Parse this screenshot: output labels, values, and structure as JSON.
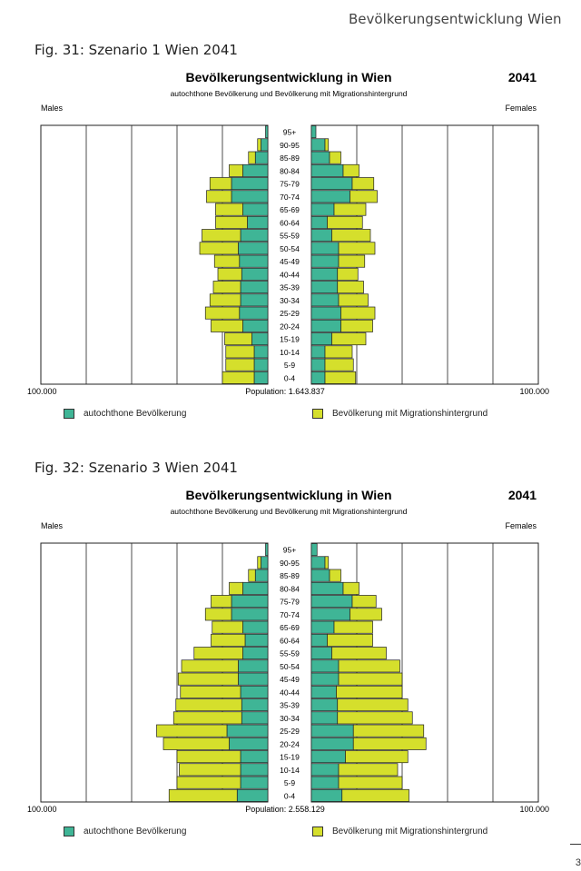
{
  "page": {
    "header": "Bevölkerungsentwicklung Wien",
    "page_number": "3"
  },
  "colors": {
    "autochthone": "#3fb596",
    "migration": "#d5df2c",
    "outline": "#222222"
  },
  "figures": [
    {
      "caption": "Fig. 31: Szenario 1 Wien 2041",
      "title": "Bevölkerungsentwicklung in Wien",
      "year": "2041",
      "subtitle": "autochthone Bevölkerung und Bevölkerung mit Migrationshintergrund",
      "males_label": "Males",
      "females_label": "Females",
      "axis_left": "100.000",
      "axis_right": "100.000",
      "population_label": "Population: 1.643.837",
      "legend_auto": "autochthone Bevölkerung",
      "legend_mig": "Bevölkerung mit Migrationshintergrund"
    },
    {
      "caption": "Fig. 32: Szenario 3 Wien 2041",
      "title": "Bevölkerungsentwicklung in Wien",
      "year": "2041",
      "subtitle": "autochthone Bevölkerung und Bevölkerung mit Migrationshintergrund",
      "males_label": "Males",
      "females_label": "Females",
      "axis_left": "100.000",
      "axis_right": "100.000",
      "population_label": "Population: 2.558.129",
      "legend_auto": "autochthone Bevölkerung",
      "legend_mig": "Bevölkerung mit Migrationshintergrund"
    }
  ],
  "chart_data": [
    {
      "type": "bar",
      "title": "Bevölkerungsentwicklung in Wien",
      "categories": [
        "95+",
        "90-95",
        "85-89",
        "80-84",
        "75-79",
        "70-74",
        "65-69",
        "60-64",
        "55-59",
        "50-54",
        "45-49",
        "40-44",
        "35-39",
        "30-34",
        "25-29",
        "20-24",
        "15-19",
        "10-14",
        "5-9",
        "0-4"
      ],
      "xlim": [
        -100000,
        100000
      ],
      "series": [
        {
          "name": "Males autochthone Bevölkerung",
          "values": [
            1000,
            3000,
            5500,
            11000,
            16000,
            16000,
            11000,
            9000,
            12000,
            13000,
            12500,
            11500,
            12000,
            12000,
            12500,
            11000,
            7000,
            6000,
            6000,
            6000
          ]
        },
        {
          "name": "Males Bevölkerung mit Migrationshintergrund",
          "values": [
            0,
            1500,
            3000,
            6000,
            9500,
            11000,
            12000,
            14000,
            17000,
            17000,
            11000,
            10500,
            12000,
            13500,
            15000,
            14000,
            12000,
            12500,
            12500,
            14000
          ]
        },
        {
          "name": "Females autochthone Bevölkerung",
          "values": [
            2000,
            6000,
            8000,
            14000,
            18000,
            17000,
            10000,
            7000,
            9000,
            12000,
            12000,
            11500,
            11500,
            12000,
            13000,
            13000,
            9000,
            6000,
            6000,
            6000
          ]
        },
        {
          "name": "Females Bevölkerung mit Migrationshintergrund",
          "values": [
            0,
            1500,
            5000,
            7000,
            9500,
            12000,
            14000,
            15500,
            17000,
            16000,
            11500,
            9000,
            11500,
            13000,
            15000,
            14000,
            15000,
            12000,
            12500,
            13500
          ]
        }
      ]
    },
    {
      "type": "bar",
      "title": "Bevölkerungsentwicklung in Wien",
      "categories": [
        "95+",
        "90-95",
        "85-89",
        "80-84",
        "75-79",
        "70-74",
        "65-69",
        "60-64",
        "55-59",
        "50-54",
        "45-49",
        "40-44",
        "35-39",
        "30-34",
        "25-29",
        "20-24",
        "15-19",
        "10-14",
        "5-9",
        "0-4"
      ],
      "xlim": [
        -100000,
        100000
      ],
      "series": [
        {
          "name": "Males autochthone Bevölkerung",
          "values": [
            1000,
            3000,
            5500,
            11000,
            16000,
            16000,
            11000,
            10000,
            11000,
            13000,
            13000,
            12000,
            11500,
            11500,
            18000,
            17000,
            12000,
            12000,
            12000,
            13500
          ]
        },
        {
          "name": "Males Bevölkerung mit Migrationshintergrund",
          "values": [
            0,
            1500,
            3000,
            6000,
            9000,
            11500,
            13500,
            15000,
            21500,
            25000,
            26500,
            26500,
            29000,
            30000,
            31000,
            29000,
            28000,
            27000,
            28000,
            30000
          ]
        },
        {
          "name": "Females autochthone Bevölkerung",
          "values": [
            2500,
            6000,
            8000,
            14000,
            18000,
            17000,
            10000,
            7000,
            9000,
            12000,
            12000,
            11000,
            11500,
            11500,
            18500,
            18500,
            15000,
            12000,
            12000,
            13500
          ]
        },
        {
          "name": "Females Bevölkerung mit Migrationshintergrund",
          "values": [
            0,
            1500,
            5000,
            7000,
            10500,
            14000,
            17000,
            20000,
            24000,
            27000,
            28000,
            29000,
            31000,
            33000,
            31000,
            32000,
            27500,
            26000,
            28000,
            29500
          ]
        }
      ]
    }
  ]
}
